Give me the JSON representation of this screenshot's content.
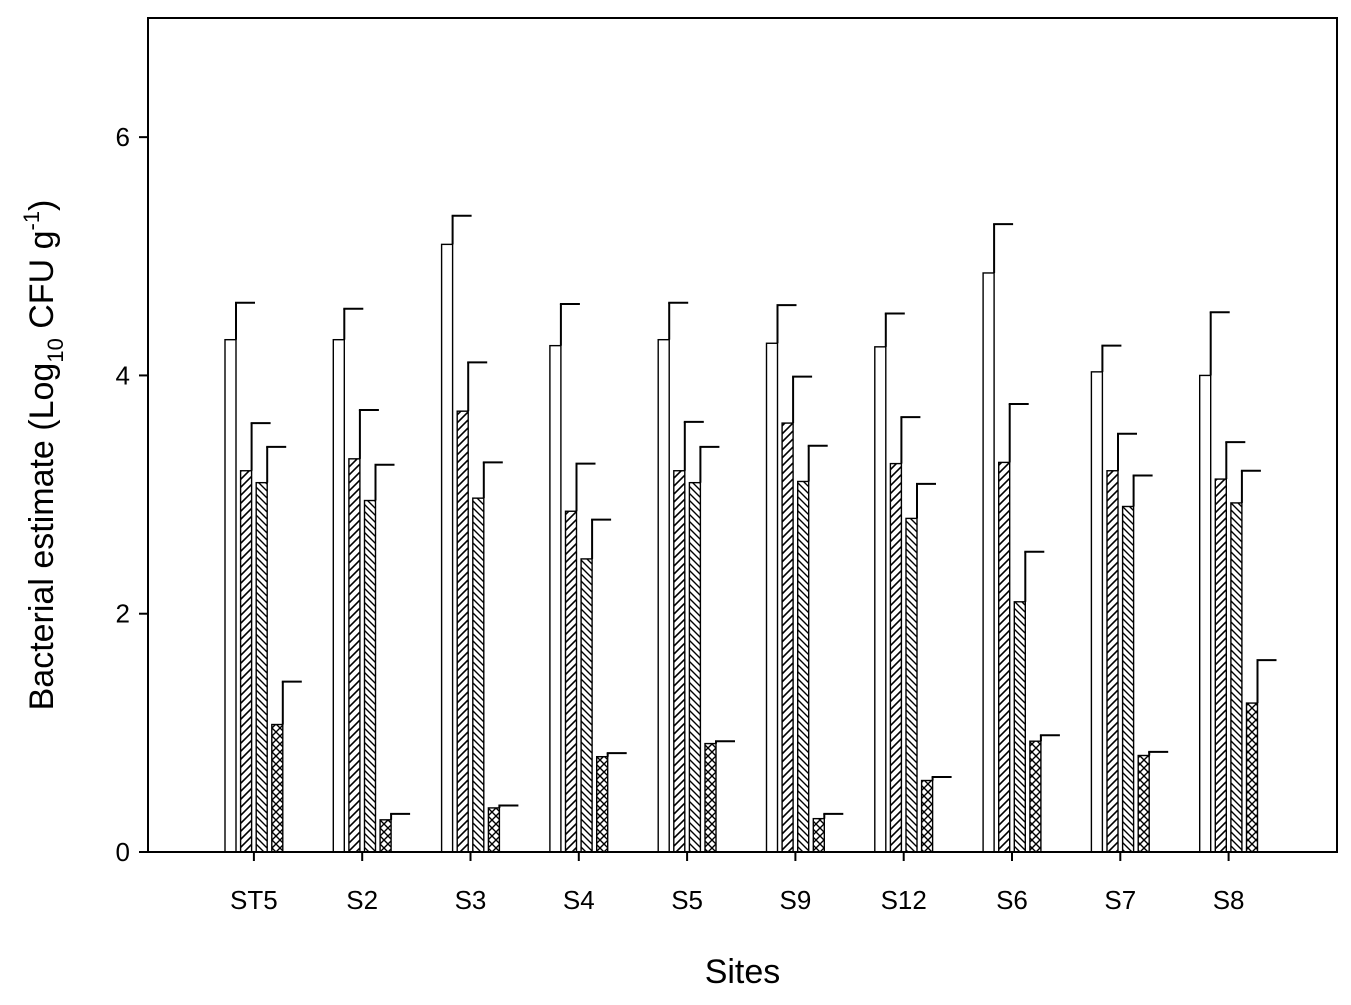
{
  "chart_data": {
    "type": "bar",
    "title": "",
    "xlabel": "Sites",
    "ylabel": {
      "prefix": "Bacterial estimate (Log",
      "sub": "10",
      "mid": " CFU g",
      "sup": "-1",
      "suffix": ")"
    },
    "ylim": [
      0,
      7
    ],
    "yticks": [
      "0",
      "2",
      "4",
      "6"
    ],
    "grid": false,
    "legend": "none",
    "categories": [
      "ST5",
      "S2",
      "S3",
      "S4",
      "S5",
      "S9",
      "S12",
      "S6",
      "S7",
      "S8"
    ],
    "series": [
      {
        "pattern": "open",
        "values": [
          4.3,
          4.3,
          5.1,
          4.25,
          4.3,
          4.27,
          4.24,
          4.86,
          4.03,
          4.0
        ],
        "errors": [
          0.31,
          0.26,
          0.24,
          0.35,
          0.31,
          0.32,
          0.28,
          0.41,
          0.22,
          0.53
        ]
      },
      {
        "pattern": "diagonal-hatch",
        "values": [
          3.2,
          3.3,
          3.7,
          2.86,
          3.2,
          3.6,
          3.26,
          3.27,
          3.2,
          3.13
        ],
        "errors": [
          0.4,
          0.41,
          0.41,
          0.4,
          0.41,
          0.39,
          0.39,
          0.49,
          0.31,
          0.31
        ]
      },
      {
        "pattern": "reverse-diagonal-hatch",
        "values": [
          3.1,
          2.95,
          2.97,
          2.46,
          3.1,
          3.11,
          2.8,
          2.1,
          2.9,
          2.93
        ],
        "errors": [
          0.3,
          0.3,
          0.3,
          0.33,
          0.3,
          0.3,
          0.29,
          0.42,
          0.26,
          0.27
        ]
      },
      {
        "pattern": "crosshatch",
        "values": [
          1.07,
          0.27,
          0.37,
          0.8,
          0.91,
          0.28,
          0.6,
          0.93,
          0.81,
          1.25
        ],
        "errors": [
          0.36,
          0.05,
          0.02,
          0.03,
          0.02,
          0.04,
          0.03,
          0.05,
          0.03,
          0.36
        ]
      }
    ]
  }
}
